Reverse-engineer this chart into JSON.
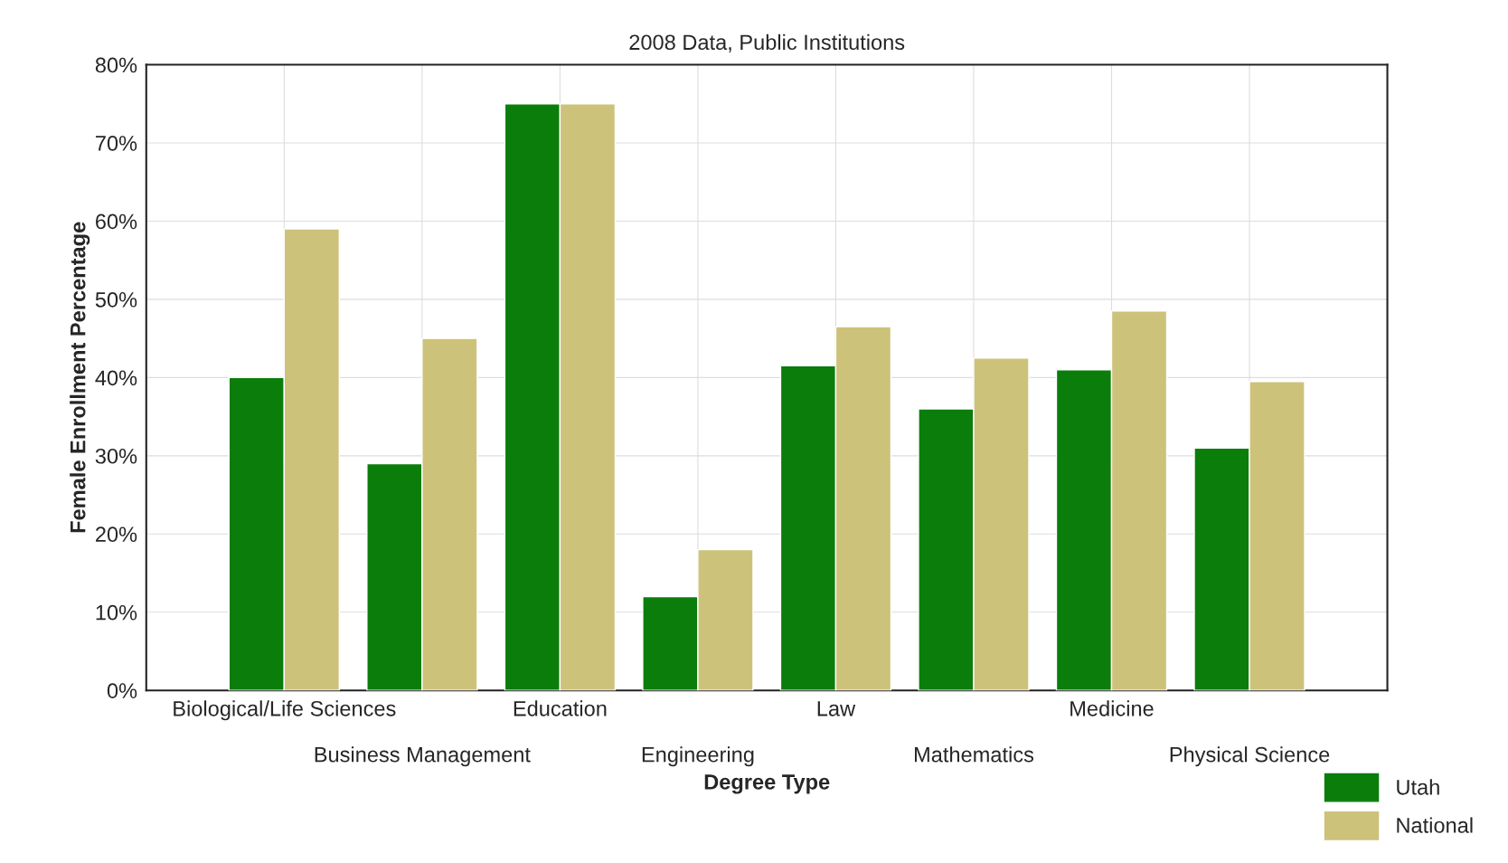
{
  "chart_data": {
    "type": "bar",
    "subtitle": "2008 Data, Public Institutions",
    "xlabel": "Degree Type",
    "ylabel": "Female Enrollment Percentage",
    "categories": [
      "Biological/Life Sciences",
      "Business Management",
      "Education",
      "Engineering",
      "Law",
      "Mathematics",
      "Medicine",
      "Physical Science"
    ],
    "series": [
      {
        "name": "Utah",
        "color": "#0a7d0a",
        "values": [
          40,
          29,
          75,
          12,
          41.5,
          36,
          41,
          31
        ]
      },
      {
        "name": "National",
        "color": "#cdc27a",
        "values": [
          59,
          45,
          75,
          18,
          46.5,
          42.5,
          48.5,
          39.5
        ]
      }
    ],
    "ylim": [
      0,
      80
    ],
    "yticks": [
      {
        "value": 0,
        "label": "0%"
      },
      {
        "value": 10,
        "label": "10%"
      },
      {
        "value": 20,
        "label": "20%"
      },
      {
        "value": 30,
        "label": "30%"
      },
      {
        "value": 40,
        "label": "40%"
      },
      {
        "value": 50,
        "label": "50%"
      },
      {
        "value": 60,
        "label": "60%"
      },
      {
        "value": 70,
        "label": "70%"
      },
      {
        "value": 80,
        "label": "80%"
      }
    ],
    "grid": true,
    "legend": "bottom right"
  }
}
